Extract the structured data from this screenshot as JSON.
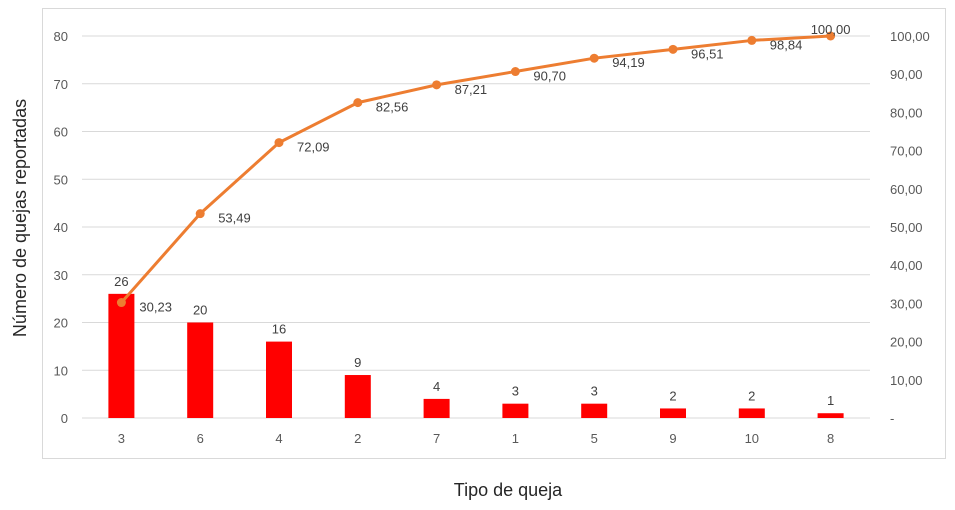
{
  "chart_data": {
    "type": "bar",
    "categories": [
      "3",
      "6",
      "4",
      "2",
      "7",
      "1",
      "5",
      "9",
      "10",
      "8"
    ],
    "series": [
      {
        "type": "bar",
        "axis": "left",
        "values": [
          26,
          20,
          16,
          9,
          4,
          3,
          3,
          2,
          2,
          1
        ],
        "labels": [
          "26",
          "20",
          "16",
          "9",
          "4",
          "3",
          "3",
          "2",
          "2",
          "1"
        ],
        "color": "#ff0000"
      },
      {
        "type": "line",
        "axis": "right",
        "values": [
          30.23,
          53.49,
          72.09,
          82.56,
          87.21,
          90.7,
          94.19,
          96.51,
          98.84,
          100.0
        ],
        "labels": [
          "30,23",
          "53,49",
          "72,09",
          "82,56",
          "87,21",
          "90,70",
          "94,19",
          "96,51",
          "98,84",
          "100,00"
        ],
        "color": "#ed7d31"
      }
    ],
    "xlabel": "Tipo de queja",
    "ylabel": "Número de quejas reportadas",
    "ylim": [
      0,
      80
    ],
    "y2lim": [
      0,
      100
    ],
    "yticks": [
      "0",
      "10",
      "20",
      "30",
      "40",
      "50",
      "60",
      "70",
      "80"
    ],
    "y2ticks": [
      "-",
      "10,00",
      "20,00",
      "30,00",
      "40,00",
      "50,00",
      "60,00",
      "70,00",
      "80,00",
      "90,00",
      "100,00"
    ],
    "grid": true,
    "legend": "none"
  }
}
